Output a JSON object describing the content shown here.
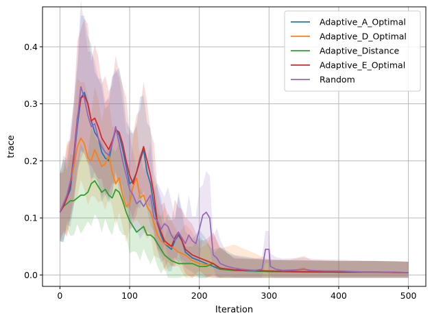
{
  "chart_data": {
    "type": "line",
    "title": "",
    "xlabel": "Iteration",
    "ylabel": "trace",
    "xlim": [
      -25,
      525
    ],
    "ylim": [
      -0.02,
      0.47
    ],
    "xticks": [
      0,
      100,
      200,
      300,
      400,
      500
    ],
    "yticks": [
      0.0,
      0.1,
      0.2,
      0.3,
      0.4
    ],
    "ytick_labels": [
      "0.0",
      "0.1",
      "0.2",
      "0.3",
      "0.4"
    ],
    "grid": true,
    "legend_position": "top-right",
    "shaded_band": true,
    "series": [
      {
        "name": "Adaptive_A_Optimal",
        "color": "#1f77b4",
        "points": [
          [
            0,
            0.11
          ],
          [
            5,
            0.12
          ],
          [
            10,
            0.135
          ],
          [
            15,
            0.15
          ],
          [
            20,
            0.2
          ],
          [
            25,
            0.26
          ],
          [
            30,
            0.31
          ],
          [
            35,
            0.32
          ],
          [
            40,
            0.3
          ],
          [
            45,
            0.27
          ],
          [
            50,
            0.25
          ],
          [
            55,
            0.24
          ],
          [
            60,
            0.215
          ],
          [
            65,
            0.205
          ],
          [
            70,
            0.2
          ],
          [
            75,
            0.23
          ],
          [
            80,
            0.255
          ],
          [
            85,
            0.245
          ],
          [
            90,
            0.22
          ],
          [
            95,
            0.19
          ],
          [
            100,
            0.16
          ],
          [
            105,
            0.165
          ],
          [
            110,
            0.18
          ],
          [
            115,
            0.2
          ],
          [
            120,
            0.22
          ],
          [
            125,
            0.18
          ],
          [
            130,
            0.16
          ],
          [
            135,
            0.12
          ],
          [
            140,
            0.09
          ],
          [
            145,
            0.07
          ],
          [
            150,
            0.055
          ],
          [
            155,
            0.05
          ],
          [
            160,
            0.045
          ],
          [
            165,
            0.06
          ],
          [
            170,
            0.07
          ],
          [
            175,
            0.06
          ],
          [
            180,
            0.04
          ],
          [
            190,
            0.03
          ],
          [
            200,
            0.025
          ],
          [
            210,
            0.02
          ],
          [
            220,
            0.015
          ],
          [
            230,
            0.01
          ],
          [
            250,
            0.008
          ],
          [
            300,
            0.006
          ],
          [
            350,
            0.006
          ],
          [
            400,
            0.005
          ],
          [
            450,
            0.005
          ],
          [
            500,
            0.004
          ]
        ]
      },
      {
        "name": "Adaptive_D_Optimal",
        "color": "#ff7f0e",
        "points": [
          [
            0,
            0.11
          ],
          [
            5,
            0.125
          ],
          [
            10,
            0.14
          ],
          [
            15,
            0.16
          ],
          [
            20,
            0.19
          ],
          [
            25,
            0.225
          ],
          [
            30,
            0.24
          ],
          [
            35,
            0.23
          ],
          [
            40,
            0.205
          ],
          [
            45,
            0.2
          ],
          [
            50,
            0.22
          ],
          [
            55,
            0.205
          ],
          [
            60,
            0.19
          ],
          [
            65,
            0.195
          ],
          [
            70,
            0.21
          ],
          [
            75,
            0.18
          ],
          [
            80,
            0.16
          ],
          [
            85,
            0.17
          ],
          [
            90,
            0.14
          ],
          [
            95,
            0.12
          ],
          [
            100,
            0.125
          ],
          [
            105,
            0.155
          ],
          [
            110,
            0.17
          ],
          [
            115,
            0.135
          ],
          [
            120,
            0.14
          ],
          [
            125,
            0.12
          ],
          [
            130,
            0.11
          ],
          [
            135,
            0.09
          ],
          [
            140,
            0.07
          ],
          [
            145,
            0.06
          ],
          [
            150,
            0.055
          ],
          [
            160,
            0.05
          ],
          [
            170,
            0.04
          ],
          [
            180,
            0.035
          ],
          [
            190,
            0.025
          ],
          [
            200,
            0.02
          ],
          [
            210,
            0.018
          ],
          [
            220,
            0.02
          ],
          [
            230,
            0.012
          ],
          [
            250,
            0.009
          ],
          [
            300,
            0.007
          ],
          [
            330,
            0.006
          ],
          [
            350,
            0.012
          ],
          [
            360,
            0.006
          ],
          [
            400,
            0.005
          ],
          [
            450,
            0.005
          ],
          [
            500,
            0.004
          ]
        ]
      },
      {
        "name": "Adaptive_Distance",
        "color": "#2ca02c",
        "points": [
          [
            0,
            0.11
          ],
          [
            5,
            0.12
          ],
          [
            10,
            0.125
          ],
          [
            15,
            0.13
          ],
          [
            20,
            0.13
          ],
          [
            25,
            0.135
          ],
          [
            30,
            0.14
          ],
          [
            35,
            0.14
          ],
          [
            40,
            0.145
          ],
          [
            45,
            0.16
          ],
          [
            50,
            0.165
          ],
          [
            55,
            0.155
          ],
          [
            60,
            0.145
          ],
          [
            65,
            0.15
          ],
          [
            70,
            0.14
          ],
          [
            75,
            0.135
          ],
          [
            80,
            0.15
          ],
          [
            85,
            0.145
          ],
          [
            90,
            0.13
          ],
          [
            95,
            0.11
          ],
          [
            100,
            0.095
          ],
          [
            105,
            0.085
          ],
          [
            110,
            0.075
          ],
          [
            115,
            0.08
          ],
          [
            120,
            0.085
          ],
          [
            125,
            0.07
          ],
          [
            130,
            0.07
          ],
          [
            135,
            0.065
          ],
          [
            140,
            0.055
          ],
          [
            145,
            0.045
          ],
          [
            150,
            0.035
          ],
          [
            155,
            0.03
          ],
          [
            160,
            0.025
          ],
          [
            170,
            0.02
          ],
          [
            180,
            0.02
          ],
          [
            190,
            0.02
          ],
          [
            200,
            0.015
          ],
          [
            210,
            0.015
          ],
          [
            220,
            0.02
          ],
          [
            230,
            0.01
          ],
          [
            250,
            0.008
          ],
          [
            300,
            0.006
          ],
          [
            350,
            0.005
          ],
          [
            400,
            0.005
          ],
          [
            450,
            0.005
          ],
          [
            500,
            0.004
          ]
        ]
      },
      {
        "name": "Adaptive_E_Optimal",
        "color": "#d62728",
        "points": [
          [
            0,
            0.11
          ],
          [
            5,
            0.12
          ],
          [
            10,
            0.135
          ],
          [
            15,
            0.16
          ],
          [
            20,
            0.21
          ],
          [
            25,
            0.275
          ],
          [
            30,
            0.31
          ],
          [
            35,
            0.315
          ],
          [
            40,
            0.3
          ],
          [
            45,
            0.27
          ],
          [
            50,
            0.275
          ],
          [
            55,
            0.26
          ],
          [
            60,
            0.24
          ],
          [
            65,
            0.23
          ],
          [
            70,
            0.22
          ],
          [
            75,
            0.235
          ],
          [
            80,
            0.255
          ],
          [
            85,
            0.25
          ],
          [
            90,
            0.23
          ],
          [
            95,
            0.2
          ],
          [
            100,
            0.175
          ],
          [
            105,
            0.16
          ],
          [
            110,
            0.18
          ],
          [
            115,
            0.205
          ],
          [
            120,
            0.225
          ],
          [
            125,
            0.2
          ],
          [
            130,
            0.175
          ],
          [
            135,
            0.14
          ],
          [
            140,
            0.09
          ],
          [
            145,
            0.075
          ],
          [
            150,
            0.06
          ],
          [
            155,
            0.055
          ],
          [
            160,
            0.05
          ],
          [
            165,
            0.065
          ],
          [
            170,
            0.075
          ],
          [
            175,
            0.06
          ],
          [
            180,
            0.045
          ],
          [
            190,
            0.035
          ],
          [
            200,
            0.03
          ],
          [
            210,
            0.025
          ],
          [
            220,
            0.02
          ],
          [
            230,
            0.012
          ],
          [
            250,
            0.009
          ],
          [
            300,
            0.007
          ],
          [
            350,
            0.006
          ],
          [
            400,
            0.005
          ],
          [
            450,
            0.005
          ],
          [
            500,
            0.004
          ]
        ]
      },
      {
        "name": "Random",
        "color": "#9467bd",
        "points": [
          [
            0,
            0.11
          ],
          [
            5,
            0.125
          ],
          [
            10,
            0.14
          ],
          [
            15,
            0.165
          ],
          [
            20,
            0.2
          ],
          [
            25,
            0.27
          ],
          [
            30,
            0.33
          ],
          [
            35,
            0.31
          ],
          [
            40,
            0.28
          ],
          [
            45,
            0.26
          ],
          [
            50,
            0.265
          ],
          [
            55,
            0.24
          ],
          [
            60,
            0.225
          ],
          [
            65,
            0.215
          ],
          [
            70,
            0.21
          ],
          [
            75,
            0.23
          ],
          [
            80,
            0.26
          ],
          [
            85,
            0.23
          ],
          [
            90,
            0.2
          ],
          [
            95,
            0.175
          ],
          [
            100,
            0.15
          ],
          [
            105,
            0.14
          ],
          [
            110,
            0.125
          ],
          [
            115,
            0.13
          ],
          [
            120,
            0.12
          ],
          [
            125,
            0.13
          ],
          [
            130,
            0.14
          ],
          [
            135,
            0.1
          ],
          [
            140,
            0.095
          ],
          [
            145,
            0.08
          ],
          [
            150,
            0.09
          ],
          [
            155,
            0.085
          ],
          [
            160,
            0.07
          ],
          [
            165,
            0.06
          ],
          [
            170,
            0.075
          ],
          [
            175,
            0.065
          ],
          [
            180,
            0.055
          ],
          [
            185,
            0.07
          ],
          [
            190,
            0.06
          ],
          [
            195,
            0.055
          ],
          [
            200,
            0.08
          ],
          [
            205,
            0.105
          ],
          [
            210,
            0.11
          ],
          [
            215,
            0.1
          ],
          [
            220,
            0.035
          ],
          [
            225,
            0.03
          ],
          [
            230,
            0.02
          ],
          [
            240,
            0.015
          ],
          [
            250,
            0.012
          ],
          [
            260,
            0.01
          ],
          [
            270,
            0.009
          ],
          [
            280,
            0.008
          ],
          [
            290,
            0.01
          ],
          [
            295,
            0.045
          ],
          [
            300,
            0.045
          ],
          [
            302,
            0.015
          ],
          [
            310,
            0.01
          ],
          [
            320,
            0.008
          ],
          [
            340,
            0.009
          ],
          [
            350,
            0.01
          ],
          [
            360,
            0.008
          ],
          [
            380,
            0.007
          ],
          [
            400,
            0.007
          ],
          [
            420,
            0.006
          ],
          [
            440,
            0.005
          ],
          [
            460,
            0.005
          ],
          [
            480,
            0.005
          ],
          [
            500,
            0.004
          ]
        ]
      }
    ]
  }
}
